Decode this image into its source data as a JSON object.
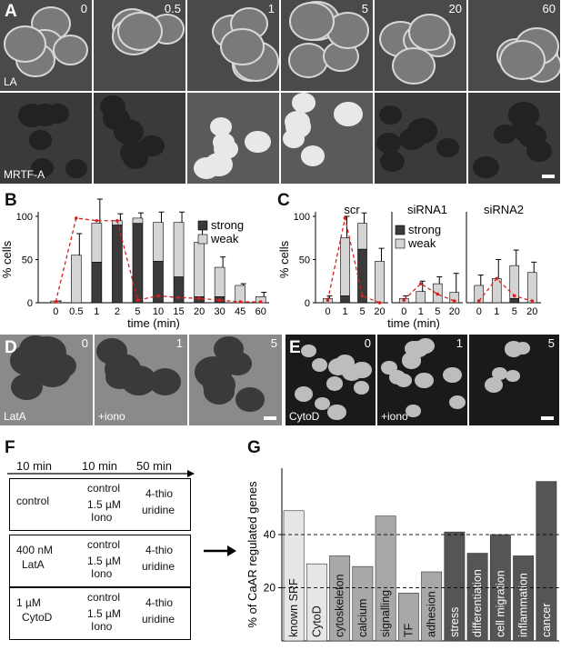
{
  "panels": {
    "A": "A",
    "B": "B",
    "C": "C",
    "D": "D",
    "E": "E",
    "F": "F",
    "G": "G"
  },
  "panelA": {
    "times": [
      "0",
      "0.5",
      "1",
      "5",
      "20",
      "60"
    ],
    "row_labels": [
      "LA",
      "MRTF-A"
    ]
  },
  "panelD": {
    "times": [
      "0",
      "1",
      "5"
    ],
    "labels": [
      "LatA",
      "+iono",
      ""
    ]
  },
  "panelE": {
    "times": [
      "0",
      "1",
      "5"
    ],
    "labels": [
      "CytoD",
      "+iono",
      ""
    ]
  },
  "chart_data": [
    {
      "type": "bar",
      "id": "B",
      "title": "",
      "xlabel": "time (min)",
      "ylabel": "% cells",
      "ylim": [
        0,
        100
      ],
      "yticks": [
        "0",
        "50",
        "100"
      ],
      "categories": [
        "0",
        "0.5",
        "1",
        "2",
        "5",
        "10",
        "15",
        "20",
        "30",
        "45",
        "60"
      ],
      "series": [
        {
          "name": "strong",
          "color": "#3a3a3a",
          "values": [
            0,
            0,
            47,
            90,
            92,
            48,
            30,
            7,
            7,
            0,
            0
          ]
        },
        {
          "name": "weak",
          "color": "#d4d4d4",
          "values": [
            2,
            55,
            45,
            5,
            6,
            45,
            63,
            63,
            34,
            20,
            7
          ]
        }
      ],
      "error_bars": [
        0,
        25,
        28,
        8,
        6,
        12,
        12,
        15,
        12,
        2,
        5
      ],
      "dashed_line": {
        "color": "#d62020",
        "values": [
          1,
          98,
          95,
          95,
          3,
          8,
          6,
          5,
          3,
          1,
          1
        ]
      },
      "legend": [
        "strong",
        "weak"
      ],
      "legend_position": "top-right"
    },
    {
      "type": "bar",
      "id": "C",
      "xlabel": "time (min)",
      "ylabel": "% cells",
      "ylim": [
        0,
        100
      ],
      "yticks": [
        "0",
        "50",
        "100"
      ],
      "groups": [
        {
          "title": "scr",
          "categories": [
            "0",
            "1",
            "5",
            "20"
          ],
          "strong": [
            0,
            8,
            62,
            0
          ],
          "weak": [
            5,
            67,
            30,
            48
          ],
          "err": [
            3,
            25,
            12,
            15
          ],
          "dashed": [
            3,
            98,
            8,
            0
          ]
        },
        {
          "title": "siRNA1",
          "categories": [
            "0",
            "1",
            "5",
            "20"
          ],
          "strong": [
            0,
            0,
            0,
            0
          ],
          "weak": [
            5,
            13,
            22,
            12
          ],
          "err": [
            3,
            12,
            8,
            22
          ],
          "dashed": [
            3,
            22,
            10,
            2
          ]
        },
        {
          "title": "siRNA2",
          "categories": [
            "0",
            "1",
            "5",
            "20"
          ],
          "strong": [
            0,
            0,
            5,
            0
          ],
          "weak": [
            20,
            28,
            38,
            35
          ],
          "err": [
            12,
            22,
            18,
            12
          ],
          "dashed": [
            2,
            28,
            8,
            2
          ]
        }
      ],
      "legend": [
        "strong",
        "weak"
      ],
      "legend_position": "top-left"
    },
    {
      "type": "bar",
      "id": "G",
      "ylabel": "% of CaAR regulated genes",
      "ylim": [
        0,
        65
      ],
      "yticks": [
        "20",
        "40"
      ],
      "dashed_lines": [
        20,
        40
      ],
      "categories": [
        "known SRF",
        "CytoD",
        "cytoskeleton",
        "calcium",
        "signalling",
        "TF",
        "adhesion",
        "stress",
        "differentiation",
        "cell migration",
        "inflammation",
        "cancer"
      ],
      "values": [
        49,
        29,
        32,
        28,
        47,
        18,
        26,
        41,
        33,
        40,
        32,
        60
      ],
      "colors": [
        "#e6e6e6",
        "#e6e6e6",
        "#a8a8a8",
        "#a8a8a8",
        "#a8a8a8",
        "#a8a8a8",
        "#a8a8a8",
        "#555555",
        "#555555",
        "#555555",
        "#555555",
        "#555555"
      ]
    }
  ],
  "panelF": {
    "times": [
      "10 min",
      "10 min",
      "50 min"
    ],
    "boxes": [
      {
        "treatment": [
          "control"
        ],
        "top": "control",
        "bottom": [
          "1.5 µM",
          "Iono"
        ],
        "out": [
          "4-thio",
          "uridine"
        ]
      },
      {
        "treatment": [
          "400 nM",
          "LatA"
        ],
        "top": "control",
        "bottom": [
          "1.5 µM",
          "Iono"
        ],
        "out": [
          "4-thio",
          "uridine"
        ]
      },
      {
        "treatment": [
          "1 µM",
          "CytoD"
        ],
        "top": "control",
        "bottom": [
          "1.5 µM",
          "Iono"
        ],
        "out": [
          "4-thio",
          "uridine"
        ]
      }
    ]
  }
}
